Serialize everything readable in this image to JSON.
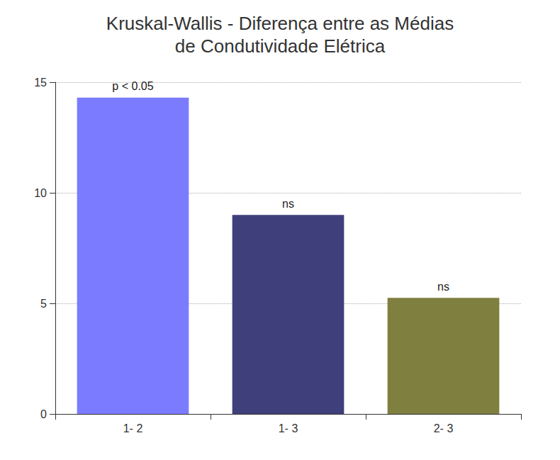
{
  "chart_data": {
    "type": "bar",
    "title": "Kruskal-Wallis - Diferença entre as Médias\nde Condutividade Elétrica",
    "categories": [
      "1- 2",
      "1- 3",
      "2- 3"
    ],
    "values": [
      14.3,
      9.0,
      5.25
    ],
    "colors": [
      "#7b7bff",
      "#3f3f7b",
      "#7f7f3f"
    ],
    "annotations": [
      "p < 0.05",
      "ns",
      "ns"
    ],
    "ylim": [
      0,
      15
    ],
    "yticks": [
      0,
      5,
      10,
      15
    ],
    "grid": true
  }
}
